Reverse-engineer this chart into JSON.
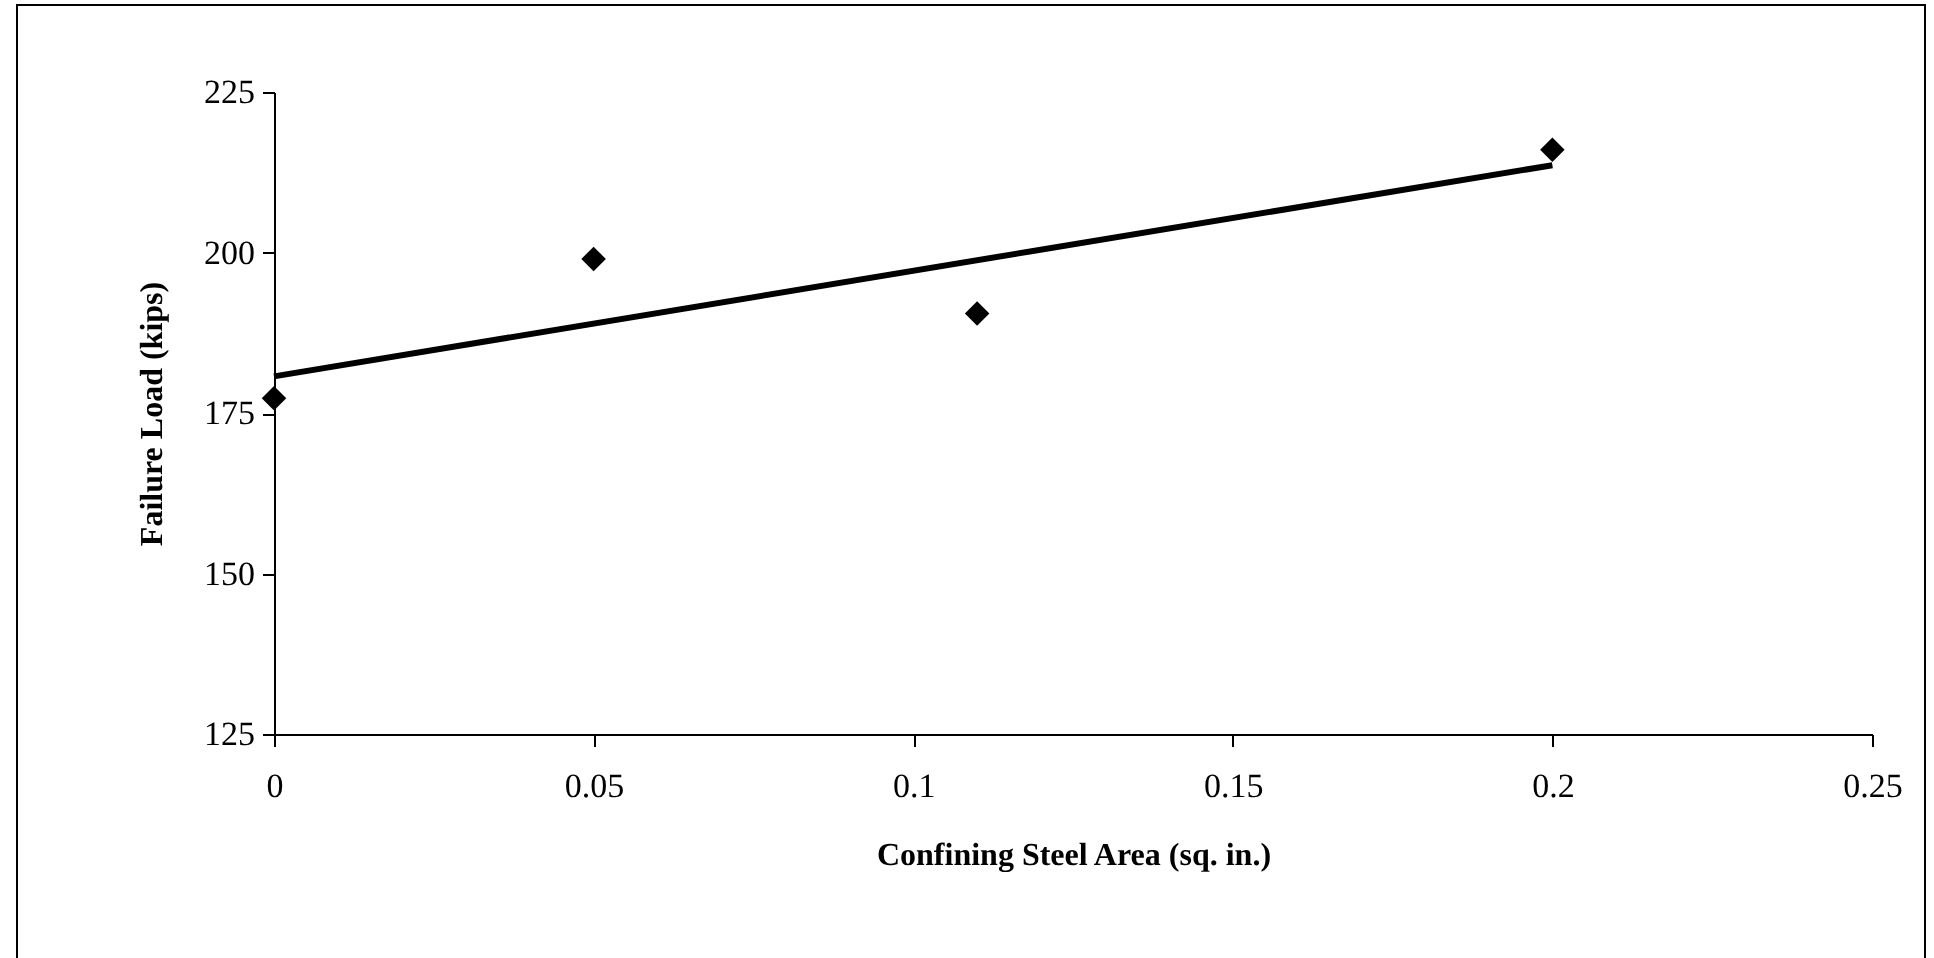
{
  "chart_data": {
    "type": "scatter",
    "xlabel": "Confining Steel Area (sq. in.)",
    "ylabel": "Failure Load (kips)",
    "xlim": [
      0,
      0.25
    ],
    "xticks": [
      0,
      0.05,
      0.1,
      0.15,
      0.2,
      0.25
    ],
    "ylim": [
      125,
      225
    ],
    "yticks": [
      125,
      150,
      175,
      200,
      225
    ],
    "grid": false,
    "series": [
      {
        "color": "#000000",
        "marker": "diamond",
        "x": [
          0,
          0.05,
          0.11,
          0.2
        ],
        "values": [
          177.3,
          199,
          190.5,
          216
        ]
      },
      {
        "type": "line",
        "color": "#000000",
        "marker": "none",
        "x": [
          0,
          0.2
        ],
        "values": [
          180.7,
          213.6
        ]
      }
    ]
  }
}
